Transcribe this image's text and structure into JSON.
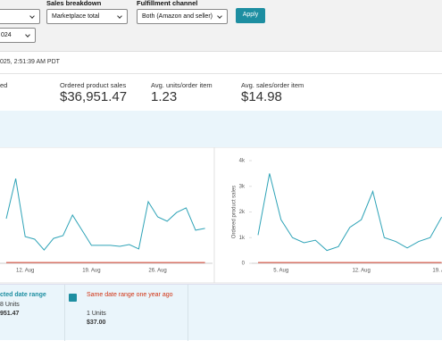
{
  "filters": {
    "sales_breakdown_label": "Sales breakdown",
    "fulfillment_label": "Fulfillment channel",
    "sales_breakdown_value": "Marketplace total",
    "fulfillment_value": "Both (Amazon and seller)",
    "apply": "Apply",
    "date_value": "024"
  },
  "timestamp": "025, 2:51:39 AM PDT",
  "metrics": [
    {
      "label": "ed"
    },
    {
      "label": "Ordered product sales",
      "value": "$36,951.47"
    },
    {
      "label": "Avg. units/order item",
      "value": "1.23"
    },
    {
      "label": "Avg. sales/order item",
      "value": "$14.98"
    }
  ],
  "chart_data": [
    {
      "type": "line",
      "categories": [
        null,
        null,
        "12. Aug",
        null,
        null,
        null,
        null,
        null,
        null,
        "19. Aug",
        null,
        null,
        null,
        null,
        null,
        null,
        "26. Aug",
        null,
        null,
        null,
        null,
        null
      ],
      "ylim": [
        0,
        400
      ],
      "series": [
        {
          "color": "#2ea3b7",
          "values": [
            174,
            330,
            104,
            94,
            52,
            97,
            108,
            188,
            129,
            70,
            70,
            70,
            66,
            73,
            56,
            240,
            181,
            164,
            198,
            216,
            129,
            136
          ]
        },
        {
          "color": "#d9432f",
          "values": [
            3,
            3,
            3,
            3,
            3,
            3,
            3,
            3,
            3,
            3,
            3,
            3,
            3,
            3,
            3,
            3,
            3,
            3,
            3,
            3,
            3,
            3
          ]
        }
      ]
    },
    {
      "type": "line",
      "y_label": "Ordered product sales",
      "categories": [
        null,
        null,
        "5. Aug",
        null,
        null,
        null,
        null,
        null,
        null,
        "12. Aug",
        null,
        null,
        null,
        null,
        null,
        null,
        "19. Aug"
      ],
      "ylim": [
        0,
        4000
      ],
      "yticks": [
        0,
        {
          "value": 1000,
          "label": "1k"
        },
        {
          "value": 2000,
          "label": "2k"
        },
        {
          "value": 3000,
          "label": "3k"
        },
        {
          "value": 4000,
          "label": "4k"
        }
      ],
      "series": [
        {
          "color": "#2ea3b7",
          "values": [
            1100,
            3500,
            1700,
            1000,
            800,
            900,
            500,
            650,
            1400,
            1700,
            2800,
            1000,
            850,
            600,
            850,
            1000,
            1800
          ]
        },
        {
          "color": "#d9432f",
          "values": [
            30,
            30,
            30,
            30,
            30,
            30,
            30,
            30,
            30,
            30,
            30,
            30,
            30,
            30,
            30,
            30,
            30
          ]
        }
      ]
    }
  ],
  "legend": [
    {
      "title": "cted date range",
      "units": "8 Units",
      "sales": "951.47"
    },
    {
      "title": "Same date range one year ago",
      "units": "1 Units",
      "sales": "$37.00"
    }
  ]
}
